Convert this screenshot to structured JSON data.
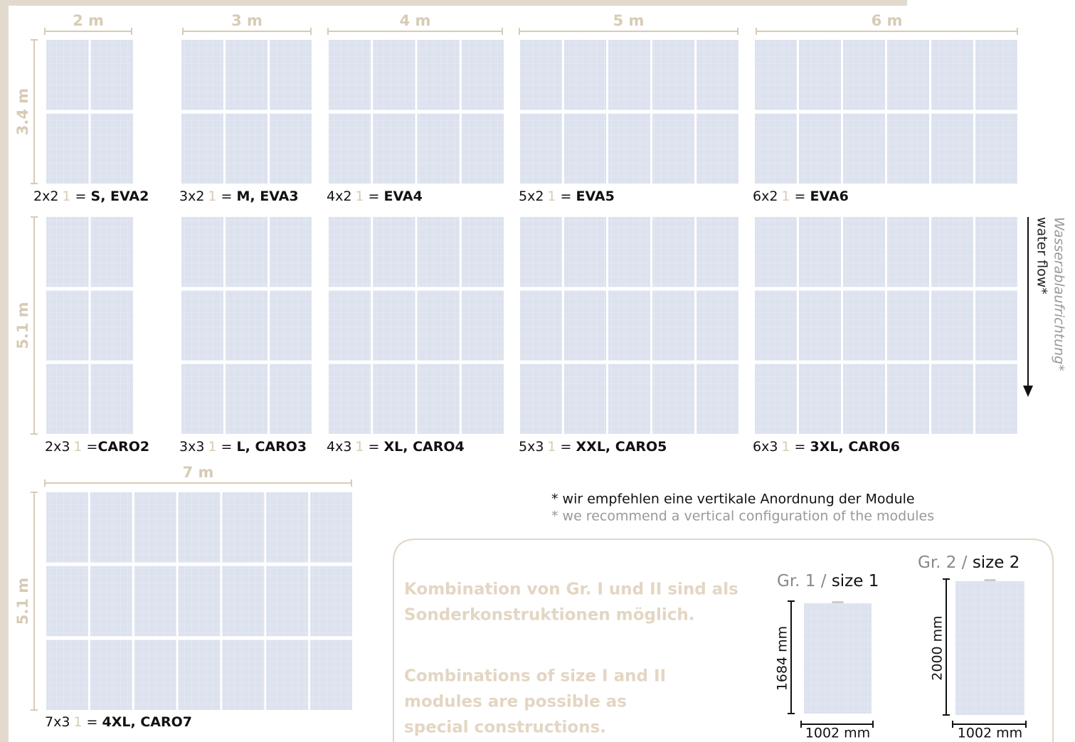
{
  "widths": [
    "2 m",
    "3 m",
    "4 m",
    "5 m",
    "6 m",
    "7 m"
  ],
  "heights": [
    "3.4 m",
    "5.1 m",
    "5.1 m"
  ],
  "configs": [
    {
      "grid": "2x2",
      "unit": "1",
      "eq": " = ",
      "name": "S, EVA2"
    },
    {
      "grid": "3x2",
      "unit": "1",
      "eq": " = ",
      "name": "M, EVA3"
    },
    {
      "grid": "4x2",
      "unit": "1",
      "eq": " = ",
      "name": "EVA4"
    },
    {
      "grid": "5x2",
      "unit": "1",
      "eq": " = ",
      "name": "EVA5"
    },
    {
      "grid": "6x2",
      "unit": "1",
      "eq": " = ",
      "name": "EVA6"
    },
    {
      "grid": "2x3",
      "unit": "1",
      "eq": " =",
      "name": "CARO2"
    },
    {
      "grid": "3x3",
      "unit": "1",
      "eq": " = ",
      "name": "L, CARO3"
    },
    {
      "grid": "4x3",
      "unit": "1",
      "eq": " = ",
      "name": "XL, CARO4"
    },
    {
      "grid": "5x3",
      "unit": "1",
      "eq": " = ",
      "name": "XXL, CARO5"
    },
    {
      "grid": "6x3",
      "unit": "1",
      "eq": " = ",
      "name": "3XL, CARO6"
    },
    {
      "grid": "7x3",
      "unit": "1",
      "eq": " = ",
      "name": "4XL, CARO7"
    }
  ],
  "water_flow": {
    "de": "Wasserablaufrichtung*",
    "en": "water flow*"
  },
  "notes": {
    "de": "* wir empfehlen eine vertikale Anordnung der Module",
    "en": "* we recommend a vertical configuration of the modules"
  },
  "box": {
    "de": [
      "Kombination von Gr. I und II sind als",
      "Sonderkonstruktionen möglich."
    ],
    "en": [
      "Combinations of size I and II",
      "modules are possible as",
      "special constructions."
    ]
  },
  "sizes": [
    {
      "group": "Gr. 1",
      "sep": " / ",
      "size": "size 1",
      "height": "1684 mm",
      "width": "1002 mm"
    },
    {
      "group": "Gr. 2",
      "sep": " / ",
      "size": "size 2",
      "height": "2000 mm",
      "width": "1002 mm"
    }
  ]
}
